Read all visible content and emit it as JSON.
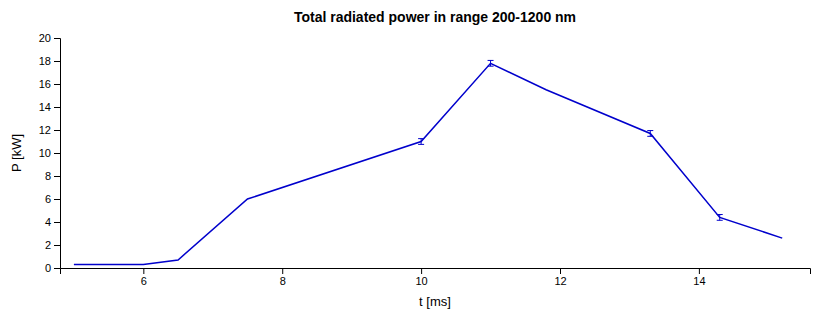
{
  "chart_data": {
    "type": "line",
    "title": "Total radiated power in range 200-1200 nm",
    "xlabel": "t [ms]",
    "ylabel": "P [kW]",
    "x": [
      5.0,
      6.0,
      6.5,
      7.5,
      10.0,
      11.0,
      11.8,
      13.3,
      14.3,
      15.2
    ],
    "values": [
      0.3,
      0.3,
      0.7,
      6.0,
      11.0,
      17.8,
      15.5,
      11.7,
      4.4,
      2.6
    ],
    "errors": [
      0.0,
      0.0,
      0.0,
      0.0,
      0.25,
      0.25,
      0.0,
      0.25,
      0.25,
      0.0
    ],
    "color": "#0000cc",
    "xlim": [
      4.8,
      15.6
    ],
    "ylim": [
      0,
      20
    ],
    "xticks": [
      6,
      8,
      10,
      12,
      14
    ],
    "yticks": [
      0,
      2,
      4,
      6,
      8,
      10,
      12,
      14,
      16,
      18,
      20
    ],
    "grid": false
  }
}
